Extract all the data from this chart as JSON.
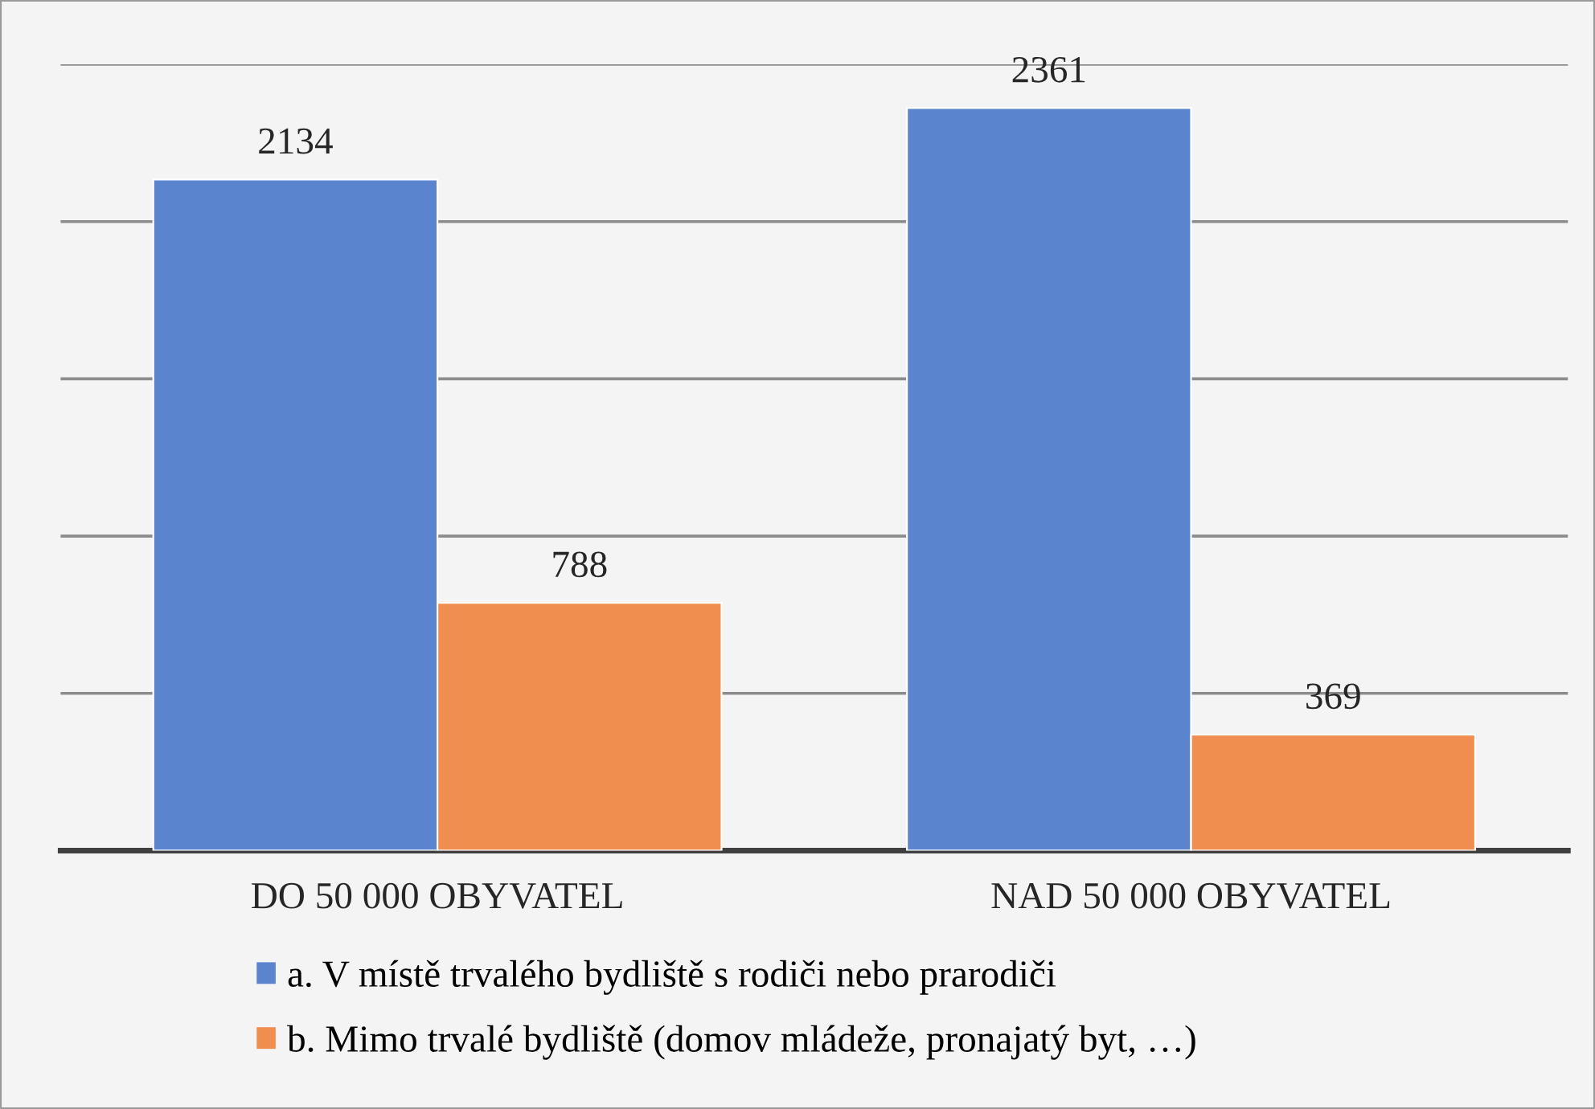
{
  "chart_data": {
    "type": "bar",
    "categories": [
      "DO 50 000 OBYVATEL",
      "NAD 50 000 OBYVATEL"
    ],
    "series": [
      {
        "name": "a. V místě trvalého bydliště s rodiči nebo prarodiči",
        "color": "#5b84cf",
        "values": [
          2134,
          2361
        ]
      },
      {
        "name": "b. Mimo trvalé bydliště (domov mládeže, pronajatý byt, …)",
        "color": "#ef8e4f",
        "values": [
          788,
          369
        ]
      }
    ],
    "ylim": [
      0,
      2500
    ],
    "yticks": [
      {
        "value": 0,
        "label": null
      },
      {
        "value": 500,
        "label": null
      },
      {
        "value": 1000,
        "label": null
      },
      {
        "value": 1500,
        "label": null
      },
      {
        "value": 2000,
        "label": null
      },
      {
        "value": 2500,
        "label": null
      }
    ],
    "tick_labels": "x",
    "grid": "y",
    "data_labels": true,
    "legend": "bottom"
  }
}
